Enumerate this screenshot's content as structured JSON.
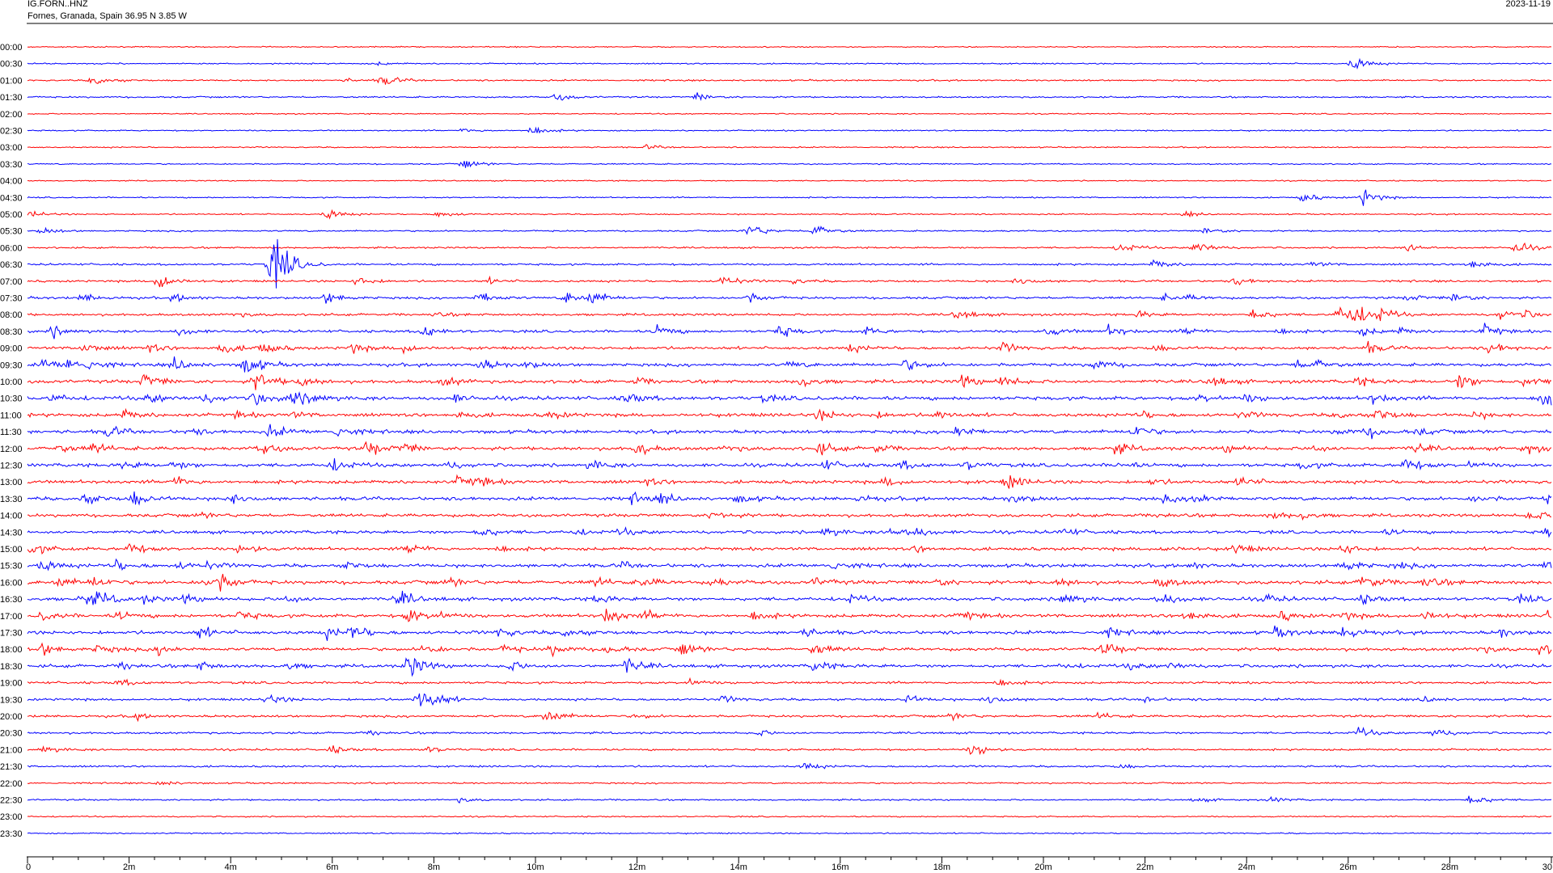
{
  "header": {
    "station": "IG.FORN..HNZ",
    "location": "Fornes, Granada, Spain  36.95 N 3.85 W",
    "date": "2023-11-19"
  },
  "colors": {
    "odd_trace": "#ff0000",
    "even_trace": "#0000ff",
    "frame": "#000000",
    "background": "#ffffff"
  },
  "chart_data": {
    "type": "line",
    "title": "IG.FORN..HNZ",
    "subtitle": "Fornes, Granada, Spain  36.95 N 3.85 W",
    "xlabel": "",
    "ylabel": "",
    "x_unit": "minutes",
    "xlim": [
      0,
      30
    ],
    "x_ticks": [
      0,
      2,
      4,
      6,
      8,
      10,
      12,
      14,
      16,
      18,
      20,
      22,
      24,
      26,
      28,
      30
    ],
    "x_tick_labels": [
      "0",
      "2m",
      "4m",
      "6m",
      "8m",
      "10m",
      "12m",
      "14m",
      "16m",
      "18m",
      "20m",
      "22m",
      "24m",
      "26m",
      "28m",
      "30"
    ],
    "row_labels": [
      "00:00",
      "00:30",
      "01:00",
      "01:30",
      "02:00",
      "02:30",
      "03:00",
      "03:30",
      "04:00",
      "04:30",
      "05:00",
      "05:30",
      "06:00",
      "06:30",
      "07:00",
      "07:30",
      "08:00",
      "08:30",
      "09:00",
      "09:30",
      "10:00",
      "10:30",
      "11:00",
      "11:30",
      "12:00",
      "12:30",
      "13:00",
      "13:30",
      "14:00",
      "14:30",
      "15:00",
      "15:30",
      "16:00",
      "16:30",
      "17:00",
      "17:30",
      "18:00",
      "18:30",
      "19:00",
      "19:30",
      "20:00",
      "20:30",
      "21:00",
      "21:30",
      "22:00",
      "22:30",
      "23:00",
      "23:30"
    ],
    "trace_colors": [
      "red",
      "blue"
    ],
    "noise": [
      0.9,
      1.0,
      1.2,
      1.2,
      0.9,
      1.0,
      1.0,
      1.0,
      0.9,
      1.0,
      1.0,
      1.2,
      1.3,
      1.5,
      1.6,
      1.8,
      1.8,
      2.0,
      2.2,
      2.4,
      2.6,
      2.8,
      2.6,
      2.6,
      2.6,
      2.6,
      2.6,
      2.6,
      2.4,
      2.4,
      2.4,
      2.6,
      2.8,
      2.6,
      2.6,
      2.6,
      2.4,
      2.4,
      1.8,
      1.8,
      1.8,
      1.6,
      1.5,
      1.4,
      1.2,
      1.2,
      1.0,
      1.0
    ],
    "events": [
      [],
      [
        [
          6.9,
          2
        ],
        [
          26.1,
          9
        ]
      ],
      [
        [
          1.3,
          7
        ],
        [
          7.0,
          7
        ],
        [
          6.3,
          2
        ]
      ],
      [
        [
          10.4,
          5
        ],
        [
          13.2,
          5
        ]
      ],
      [],
      [
        [
          8.6,
          3
        ],
        [
          9.9,
          7
        ]
      ],
      [
        [
          12.2,
          3
        ]
      ],
      [
        [
          8.6,
          6
        ]
      ],
      [],
      [
        [
          25.1,
          6
        ],
        [
          26.3,
          10
        ]
      ],
      [
        [
          5.9,
          7
        ],
        [
          8.1,
          5
        ],
        [
          22.8,
          3
        ],
        [
          0.1,
          4
        ]
      ],
      [
        [
          0.3,
          4
        ],
        [
          14.2,
          9
        ],
        [
          15.5,
          9
        ],
        [
          23.2,
          5
        ]
      ],
      [
        [
          21.5,
          7
        ],
        [
          23.0,
          9
        ],
        [
          27.2,
          5
        ],
        [
          29.3,
          8
        ]
      ],
      [
        [
          4.8,
          30
        ],
        [
          4.9,
          16
        ],
        [
          22.2,
          6
        ],
        [
          25.3,
          4
        ],
        [
          28.4,
          8
        ]
      ],
      [
        [
          2.6,
          12
        ],
        [
          6.5,
          6
        ],
        [
          9.1,
          3
        ],
        [
          13.7,
          7
        ],
        [
          15.1,
          3
        ],
        [
          19.5,
          5
        ],
        [
          23.8,
          5
        ]
      ],
      [
        [
          1.1,
          5
        ],
        [
          2.9,
          5
        ],
        [
          5.9,
          8
        ],
        [
          8.9,
          8
        ],
        [
          10.6,
          8
        ],
        [
          11.1,
          8
        ],
        [
          14.2,
          6
        ],
        [
          22.4,
          4
        ],
        [
          27.2,
          4
        ],
        [
          28.1,
          7
        ],
        [
          22.9,
          3
        ]
      ],
      [
        [
          4.1,
          3
        ],
        [
          8.0,
          3
        ],
        [
          18.3,
          7
        ],
        [
          21.9,
          4
        ],
        [
          24.1,
          9
        ],
        [
          25.8,
          9
        ],
        [
          26.1,
          16
        ],
        [
          26.6,
          7
        ],
        [
          29.0,
          6
        ],
        [
          29.5,
          4
        ]
      ],
      [
        [
          0.5,
          7
        ],
        [
          3.0,
          5
        ],
        [
          7.8,
          8
        ],
        [
          12.4,
          8
        ],
        [
          14.8,
          9
        ],
        [
          16.5,
          5
        ],
        [
          20.1,
          6
        ],
        [
          21.3,
          7
        ],
        [
          22.8,
          5
        ],
        [
          27.0,
          4
        ],
        [
          28.7,
          8
        ],
        [
          26.3,
          5
        ],
        [
          24.6,
          4
        ]
      ],
      [
        [
          1.1,
          7
        ],
        [
          2.4,
          5
        ],
        [
          3.8,
          7
        ],
        [
          4.6,
          8
        ],
        [
          6.4,
          6
        ],
        [
          7.4,
          6
        ],
        [
          16.2,
          5
        ],
        [
          19.2,
          6
        ],
        [
          22.2,
          4
        ],
        [
          26.4,
          6
        ],
        [
          28.8,
          8
        ]
      ],
      [
        [
          0.3,
          7
        ],
        [
          0.8,
          8
        ],
        [
          1.2,
          6
        ],
        [
          2.9,
          8
        ],
        [
          4.3,
          13
        ],
        [
          8.9,
          8
        ],
        [
          9.8,
          4
        ],
        [
          15.0,
          4
        ],
        [
          17.3,
          8
        ],
        [
          21.0,
          7
        ],
        [
          25.0,
          5
        ],
        [
          25.4,
          5
        ]
      ],
      [
        [
          2.3,
          9
        ],
        [
          4.5,
          13
        ],
        [
          5.4,
          6
        ],
        [
          8.2,
          6
        ],
        [
          12.0,
          4
        ],
        [
          15.2,
          8
        ],
        [
          18.4,
          8
        ],
        [
          19.2,
          7
        ],
        [
          23.3,
          7
        ],
        [
          26.2,
          5
        ],
        [
          28.2,
          11
        ],
        [
          29.5,
          6
        ]
      ],
      [
        [
          0.5,
          5
        ],
        [
          2.4,
          6
        ],
        [
          3.5,
          5
        ],
        [
          4.5,
          9
        ],
        [
          5.2,
          10
        ],
        [
          5.6,
          5
        ],
        [
          8.4,
          5
        ],
        [
          11.8,
          7
        ],
        [
          14.5,
          4
        ],
        [
          23.1,
          5
        ],
        [
          24.0,
          5
        ],
        [
          26.5,
          6
        ],
        [
          29.8,
          6
        ],
        [
          29.9,
          9
        ]
      ],
      [
        [
          1.9,
          6
        ],
        [
          4.1,
          4
        ],
        [
          5.2,
          4
        ],
        [
          8.5,
          4
        ],
        [
          10.3,
          5
        ],
        [
          15.6,
          7
        ],
        [
          16.7,
          4
        ],
        [
          17.9,
          5
        ],
        [
          21.9,
          5
        ],
        [
          23.9,
          4
        ],
        [
          25.8,
          4
        ],
        [
          26.6,
          8
        ],
        [
          28.5,
          4
        ]
      ],
      [
        [
          1.6,
          7
        ],
        [
          3.2,
          4
        ],
        [
          4.8,
          8
        ],
        [
          6.1,
          8
        ],
        [
          18.3,
          9
        ],
        [
          21.8,
          8
        ],
        [
          25.8,
          4
        ],
        [
          26.4,
          6
        ],
        [
          27.4,
          4
        ]
      ],
      [
        [
          0.6,
          5
        ],
        [
          1.3,
          6
        ],
        [
          4.6,
          8
        ],
        [
          6.7,
          9
        ],
        [
          7.4,
          6
        ],
        [
          12.0,
          8
        ],
        [
          13.8,
          4
        ],
        [
          15.6,
          7
        ],
        [
          16.7,
          5
        ],
        [
          21.4,
          8
        ],
        [
          23.6,
          5
        ],
        [
          25.3,
          5
        ],
        [
          27.3,
          6
        ],
        [
          29.5,
          6
        ]
      ],
      [
        [
          1.9,
          5
        ],
        [
          2.9,
          5
        ],
        [
          6.0,
          9
        ],
        [
          8.3,
          4
        ],
        [
          11.1,
          6
        ],
        [
          15.7,
          6
        ],
        [
          17.2,
          5
        ],
        [
          18.5,
          5
        ],
        [
          21.5,
          4
        ],
        [
          25.1,
          5
        ],
        [
          27.1,
          10
        ],
        [
          28.4,
          4
        ]
      ],
      [
        [
          2.9,
          7
        ],
        [
          8.5,
          7
        ],
        [
          8.9,
          5
        ],
        [
          12.2,
          4
        ],
        [
          16.9,
          5
        ],
        [
          19.3,
          9
        ],
        [
          22.1,
          4
        ],
        [
          23.9,
          7
        ]
      ],
      [
        [
          1.1,
          7
        ],
        [
          2.1,
          9
        ],
        [
          4.0,
          7
        ],
        [
          11.9,
          7
        ],
        [
          12.5,
          5
        ],
        [
          14.0,
          5
        ],
        [
          16.4,
          4
        ],
        [
          19.4,
          6
        ],
        [
          22.4,
          4
        ],
        [
          23.0,
          8
        ],
        [
          28.5,
          5
        ],
        [
          29.9,
          4
        ]
      ],
      [
        [
          3.4,
          3
        ],
        [
          13.5,
          6
        ],
        [
          22.3,
          3
        ],
        [
          24.5,
          5
        ],
        [
          25.1,
          4
        ],
        [
          29.6,
          7
        ]
      ],
      [
        [
          8.9,
          7
        ],
        [
          10.8,
          4
        ],
        [
          11.7,
          4
        ],
        [
          15.7,
          6
        ],
        [
          17.0,
          5
        ],
        [
          17.4,
          7
        ],
        [
          20.4,
          5
        ],
        [
          26.8,
          3
        ],
        [
          29.9,
          6
        ]
      ],
      [
        [
          0.1,
          7
        ],
        [
          2.0,
          8
        ],
        [
          4.2,
          7
        ],
        [
          7.5,
          7
        ],
        [
          9.2,
          5
        ],
        [
          17.5,
          4
        ],
        [
          22.4,
          4
        ],
        [
          23.8,
          6
        ],
        [
          25.9,
          7
        ]
      ],
      [
        [
          0.3,
          7
        ],
        [
          1.7,
          8
        ],
        [
          3.0,
          4
        ],
        [
          3.5,
          4
        ],
        [
          6.3,
          4
        ],
        [
          11.7,
          4
        ],
        [
          15.8,
          8
        ],
        [
          22.9,
          4
        ],
        [
          25.9,
          9
        ],
        [
          27.0,
          4
        ],
        [
          29.9,
          7
        ]
      ],
      [
        [
          0.6,
          6
        ],
        [
          1.3,
          6
        ],
        [
          3.5,
          6
        ],
        [
          3.8,
          9
        ],
        [
          8.3,
          5
        ],
        [
          11.2,
          5
        ],
        [
          12.1,
          6
        ],
        [
          13.5,
          5
        ],
        [
          15.5,
          5
        ],
        [
          17.9,
          5
        ],
        [
          20.3,
          5
        ],
        [
          22.3,
          7
        ],
        [
          26.3,
          10
        ],
        [
          27.5,
          8
        ]
      ],
      [
        [
          1.1,
          9
        ],
        [
          1.4,
          6
        ],
        [
          2.3,
          5
        ],
        [
          3.1,
          5
        ],
        [
          5.1,
          5
        ],
        [
          7.3,
          10
        ],
        [
          11.2,
          5
        ],
        [
          16.2,
          5
        ],
        [
          20.4,
          9
        ],
        [
          22.3,
          9
        ],
        [
          24.4,
          5
        ],
        [
          26.3,
          6
        ],
        [
          29.4,
          5
        ]
      ],
      [
        [
          0.3,
          5
        ],
        [
          1.8,
          5
        ],
        [
          4.2,
          6
        ],
        [
          7.5,
          9
        ],
        [
          8.0,
          5
        ],
        [
          11.4,
          10
        ],
        [
          12.2,
          5
        ],
        [
          14.3,
          6
        ],
        [
          18.4,
          6
        ],
        [
          22.8,
          9
        ],
        [
          24.7,
          5
        ],
        [
          25.9,
          5
        ],
        [
          27.5,
          7
        ],
        [
          29.9,
          7
        ]
      ],
      [
        [
          3.4,
          7
        ],
        [
          5.9,
          7
        ],
        [
          6.4,
          9
        ],
        [
          9.3,
          6
        ],
        [
          10.6,
          6
        ],
        [
          15.3,
          5
        ],
        [
          21.3,
          5
        ],
        [
          24.6,
          7
        ],
        [
          25.9,
          9
        ],
        [
          29.0,
          5
        ]
      ],
      [
        [
          0.3,
          8
        ],
        [
          1.4,
          6
        ],
        [
          2.6,
          6
        ],
        [
          7.8,
          7
        ],
        [
          9.4,
          5
        ],
        [
          10.3,
          7
        ],
        [
          11.4,
          6
        ],
        [
          12.9,
          8
        ],
        [
          15.5,
          7
        ],
        [
          21.2,
          8
        ],
        [
          28.6,
          5
        ],
        [
          29.8,
          7
        ]
      ],
      [
        [
          1.9,
          5
        ],
        [
          3.4,
          5
        ],
        [
          5.1,
          5
        ],
        [
          7.5,
          17
        ],
        [
          9.5,
          7
        ],
        [
          11.8,
          10
        ],
        [
          15.5,
          7
        ],
        [
          20.4,
          3
        ],
        [
          21.7,
          4
        ],
        [
          22.5,
          4
        ]
      ],
      [
        [
          1.8,
          4
        ],
        [
          13.0,
          5
        ],
        [
          19.1,
          5
        ]
      ],
      [
        [
          7.7,
          15
        ],
        [
          8.0,
          5
        ],
        [
          4.7,
          7
        ],
        [
          13.7,
          4
        ],
        [
          17.3,
          6
        ],
        [
          18.9,
          7
        ],
        [
          22.0,
          4
        ],
        [
          27.5,
          4
        ]
      ],
      [
        [
          2.1,
          4
        ],
        [
          10.2,
          10
        ],
        [
          12.0,
          3
        ],
        [
          18.2,
          4
        ],
        [
          21.1,
          4
        ]
      ],
      [
        [
          6.8,
          3
        ],
        [
          14.4,
          4
        ],
        [
          26.2,
          6
        ],
        [
          27.7,
          6
        ]
      ],
      [
        [
          0.3,
          5
        ],
        [
          6.0,
          5
        ],
        [
          7.8,
          5
        ],
        [
          18.6,
          9
        ]
      ],
      [
        [
          15.3,
          5
        ],
        [
          21.5,
          3
        ]
      ],
      [
        [
          2.6,
          4
        ]
      ],
      [
        [
          8.5,
          3
        ],
        [
          23.0,
          3
        ],
        [
          24.5,
          3
        ],
        [
          28.4,
          8
        ]
      ],
      [],
      []
    ]
  }
}
